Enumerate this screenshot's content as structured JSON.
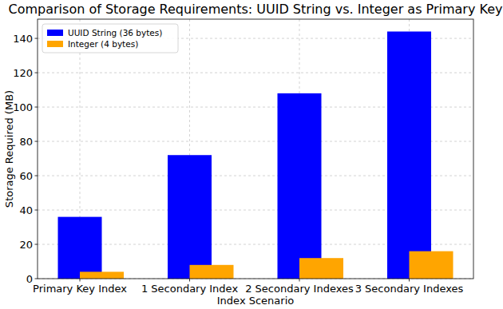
{
  "chart_data": {
    "type": "bar",
    "title": "Comparison of Storage Requirements: UUID String vs. Integer as Primary Key",
    "x_label": "Index Scenario",
    "y_label": "Storage Required (MB)",
    "categories": [
      "Primary Key Index",
      "1 Secondary Index",
      "2 Secondary Indexes",
      "3 Secondary Indexes"
    ],
    "series": [
      {
        "name": "UUID String (36 bytes)",
        "color": "#0000ff",
        "values": [
          36,
          72,
          108,
          144
        ]
      },
      {
        "name": "Integer (4 bytes)",
        "color": "#ffa500",
        "values": [
          4,
          8,
          12,
          16
        ]
      }
    ],
    "ylim": [
      0,
      151.2
    ],
    "yticks": [
      0,
      20,
      40,
      60,
      80,
      100,
      120,
      140
    ],
    "grid": true,
    "legend": "upper-left"
  }
}
